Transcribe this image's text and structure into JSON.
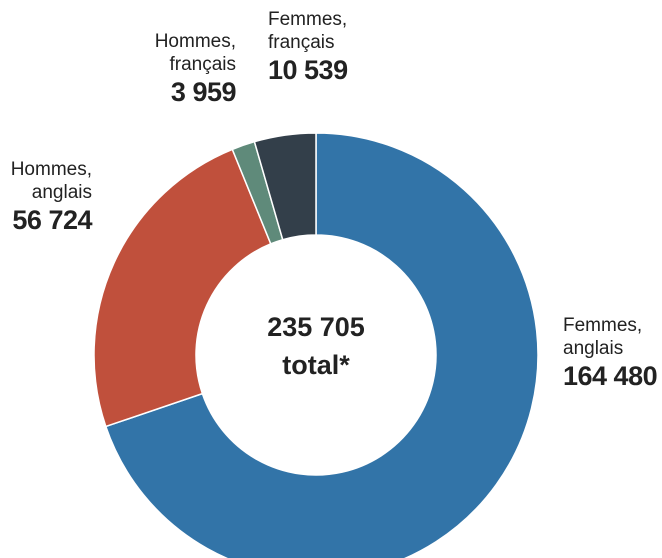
{
  "chart_data": {
    "type": "donut",
    "categories": [
      "Femmes, anglais",
      "Hommes, anglais",
      "Hommes, français",
      "Femmes, français"
    ],
    "values": [
      164480,
      56724,
      3959,
      10539
    ],
    "value_labels": [
      "164 480",
      "56 724",
      "3 959",
      "10 539"
    ],
    "colors": [
      "#3274a8",
      "#c0503c",
      "#5f8a7a",
      "#333f4a"
    ],
    "center_text": [
      "235 705",
      "total*"
    ]
  }
}
